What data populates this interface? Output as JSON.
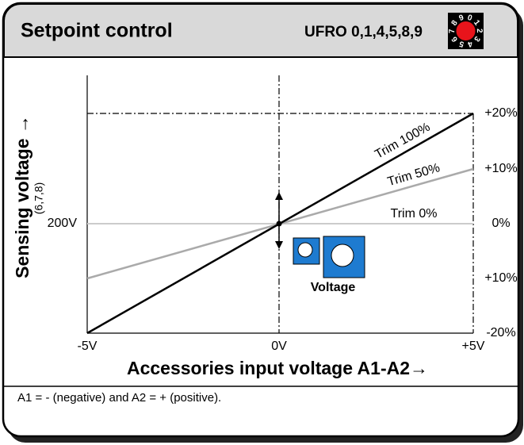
{
  "header": {
    "title": "Setpoint control",
    "model": "UFRO 0,1,4,5,8,9",
    "dial_digits": [
      "0",
      "1",
      "2",
      "3",
      "4",
      "5",
      "6",
      "7",
      "8",
      "9"
    ]
  },
  "plot": {
    "y_axis_title": "Sensing voltage →",
    "y_axis_subtitle": "(6,7,8)",
    "y_center_label": "200V",
    "x_axis_title": "Accessories input voltage A1-A2→",
    "x_labels": [
      "-5V",
      "0V",
      "+5V"
    ],
    "right_labels": [
      "+20%",
      "+10%",
      "0%",
      "+10%",
      "-20%"
    ],
    "line_labels": [
      "Trim 100%",
      "Trim 50%",
      "Trim 0%"
    ],
    "icon_label": "Voltage"
  },
  "footer": {
    "note": "A1 = - (negative) and A2 = + (positive)."
  }
}
